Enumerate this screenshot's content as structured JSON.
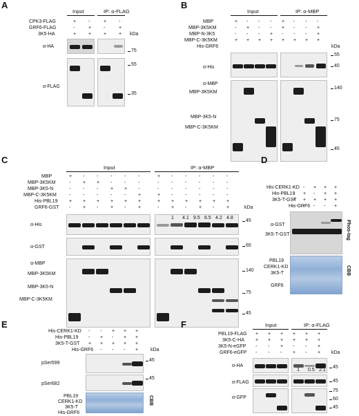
{
  "panels": {
    "A": {
      "letter": "A",
      "rows": [
        "CPK3-FLAG",
        "GRF6-FLAG",
        "3K5-HA"
      ],
      "headers": [
        "Input",
        "IP: α-FLAG"
      ],
      "blots": [
        "α-HA",
        "α-FLAG"
      ],
      "kda": "kDa",
      "markers": [
        "75",
        "55",
        "35"
      ]
    },
    "B": {
      "letter": "B",
      "rows": [
        "MBP",
        "MBP-3K5KM",
        "MBP-N-3K5",
        "MBP-C-3K5KM",
        "His-GRF6"
      ],
      "headers": [
        "Input",
        "IP: α-MBP"
      ],
      "blots": [
        "α-His",
        "α-MBP"
      ],
      "band_labels": [
        "MBP-3K5KM",
        "MBP-3K5-N",
        "MBP-C-3K5KM"
      ],
      "kda": "kDa",
      "markers": [
        "55",
        "40",
        "140",
        "75",
        "45"
      ]
    },
    "C": {
      "letter": "C",
      "rows": [
        "MBP",
        "MBP-3K5KM",
        "MBP-3K5-N",
        "MBP-C-3K5KM",
        "His-PBL19",
        "GRF6-GST"
      ],
      "headers": [
        "Input",
        "IP: α-MBP"
      ],
      "blots": [
        "α-His",
        "α-GST",
        "α-MBP"
      ],
      "band_labels": [
        "MBP-3K5KM",
        "MBP-3K5-N",
        "MBP-C-3K5KM"
      ],
      "quant": [
        "1",
        "4.1",
        "9.5",
        "6.5",
        "4.2",
        "4.8"
      ],
      "kda": "kDa",
      "markers": [
        "45",
        "65",
        "140",
        "75",
        "45"
      ]
    },
    "D": {
      "letter": "D",
      "rows": [
        "His-CERK1-KD",
        "His-PBL19",
        "3K5-T-GST",
        "His-GRF6"
      ],
      "blots": [
        "α-GST",
        "3K5-T-GST"
      ],
      "side_labels": [
        "Phos-tag",
        "CBB"
      ],
      "cbb_labels": [
        "PBL19",
        "CERK1-KD",
        "3K5-T",
        "GRF6"
      ]
    },
    "E": {
      "letter": "E",
      "rows": [
        "His-CERK1-KD",
        "His-PBL19",
        "3K5-T-GST",
        "His-GRF6"
      ],
      "blots": [
        "pSer599",
        "pSer682"
      ],
      "side_labels": [
        "CBB"
      ],
      "cbb_labels": [
        "PBL19",
        "CERK1-KD",
        "3K5-T",
        "His-GRF6"
      ],
      "kda": "kDa",
      "markers": [
        "45",
        "45"
      ]
    },
    "F": {
      "letter": "F",
      "rows": [
        "PBL19-FLAG",
        "3K5-C-HA",
        "3K5-N-eGFP",
        "GRF6-eGFP"
      ],
      "headers": [
        "Input",
        "IP: α-FLAG"
      ],
      "blots": [
        "α-HA",
        "α-FLAG",
        "α-GFP"
      ],
      "quant": [
        "1",
        "0.5",
        "2.1"
      ],
      "kda": "kDa",
      "markers": [
        "45",
        "45",
        "75",
        "60",
        "45"
      ]
    }
  },
  "signs": {
    "A": [
      "+",
      "-",
      "+",
      "-",
      "-",
      "+",
      "-",
      "+",
      "+",
      "+",
      "+",
      "+"
    ],
    "B": [
      "+",
      "-",
      "-",
      "-",
      "+",
      "-",
      "-",
      "-",
      "-",
      "+",
      "-",
      "-",
      "+",
      "-",
      "-",
      "+",
      "-",
      "-",
      "-",
      "+",
      "-",
      "-",
      "-",
      "+",
      "+",
      "+",
      "+",
      "+",
      "+",
      "+",
      "+",
      "+"
    ],
    "D": [
      "-",
      "-",
      "+",
      "+",
      "+",
      "-",
      "+",
      "-",
      "+",
      "+",
      "+",
      "+",
      "+",
      "+",
      "+",
      "-",
      "-",
      "-",
      "-",
      "+"
    ],
    "E": [
      "-",
      "-",
      "+",
      "+",
      "+",
      "-",
      "+",
      "-",
      "+",
      "+",
      "+",
      "+",
      "+",
      "+",
      "+",
      "-",
      "-",
      "-",
      "-",
      "+"
    ],
    "F": [
      "+",
      "+",
      "+",
      "+",
      "+",
      "+",
      "+",
      "+",
      "+",
      "+",
      "+",
      "+",
      "-",
      "-",
      "+",
      "-",
      "-",
      "+",
      "-",
      "-",
      "-",
      "+",
      "-",
      "+"
    ]
  }
}
